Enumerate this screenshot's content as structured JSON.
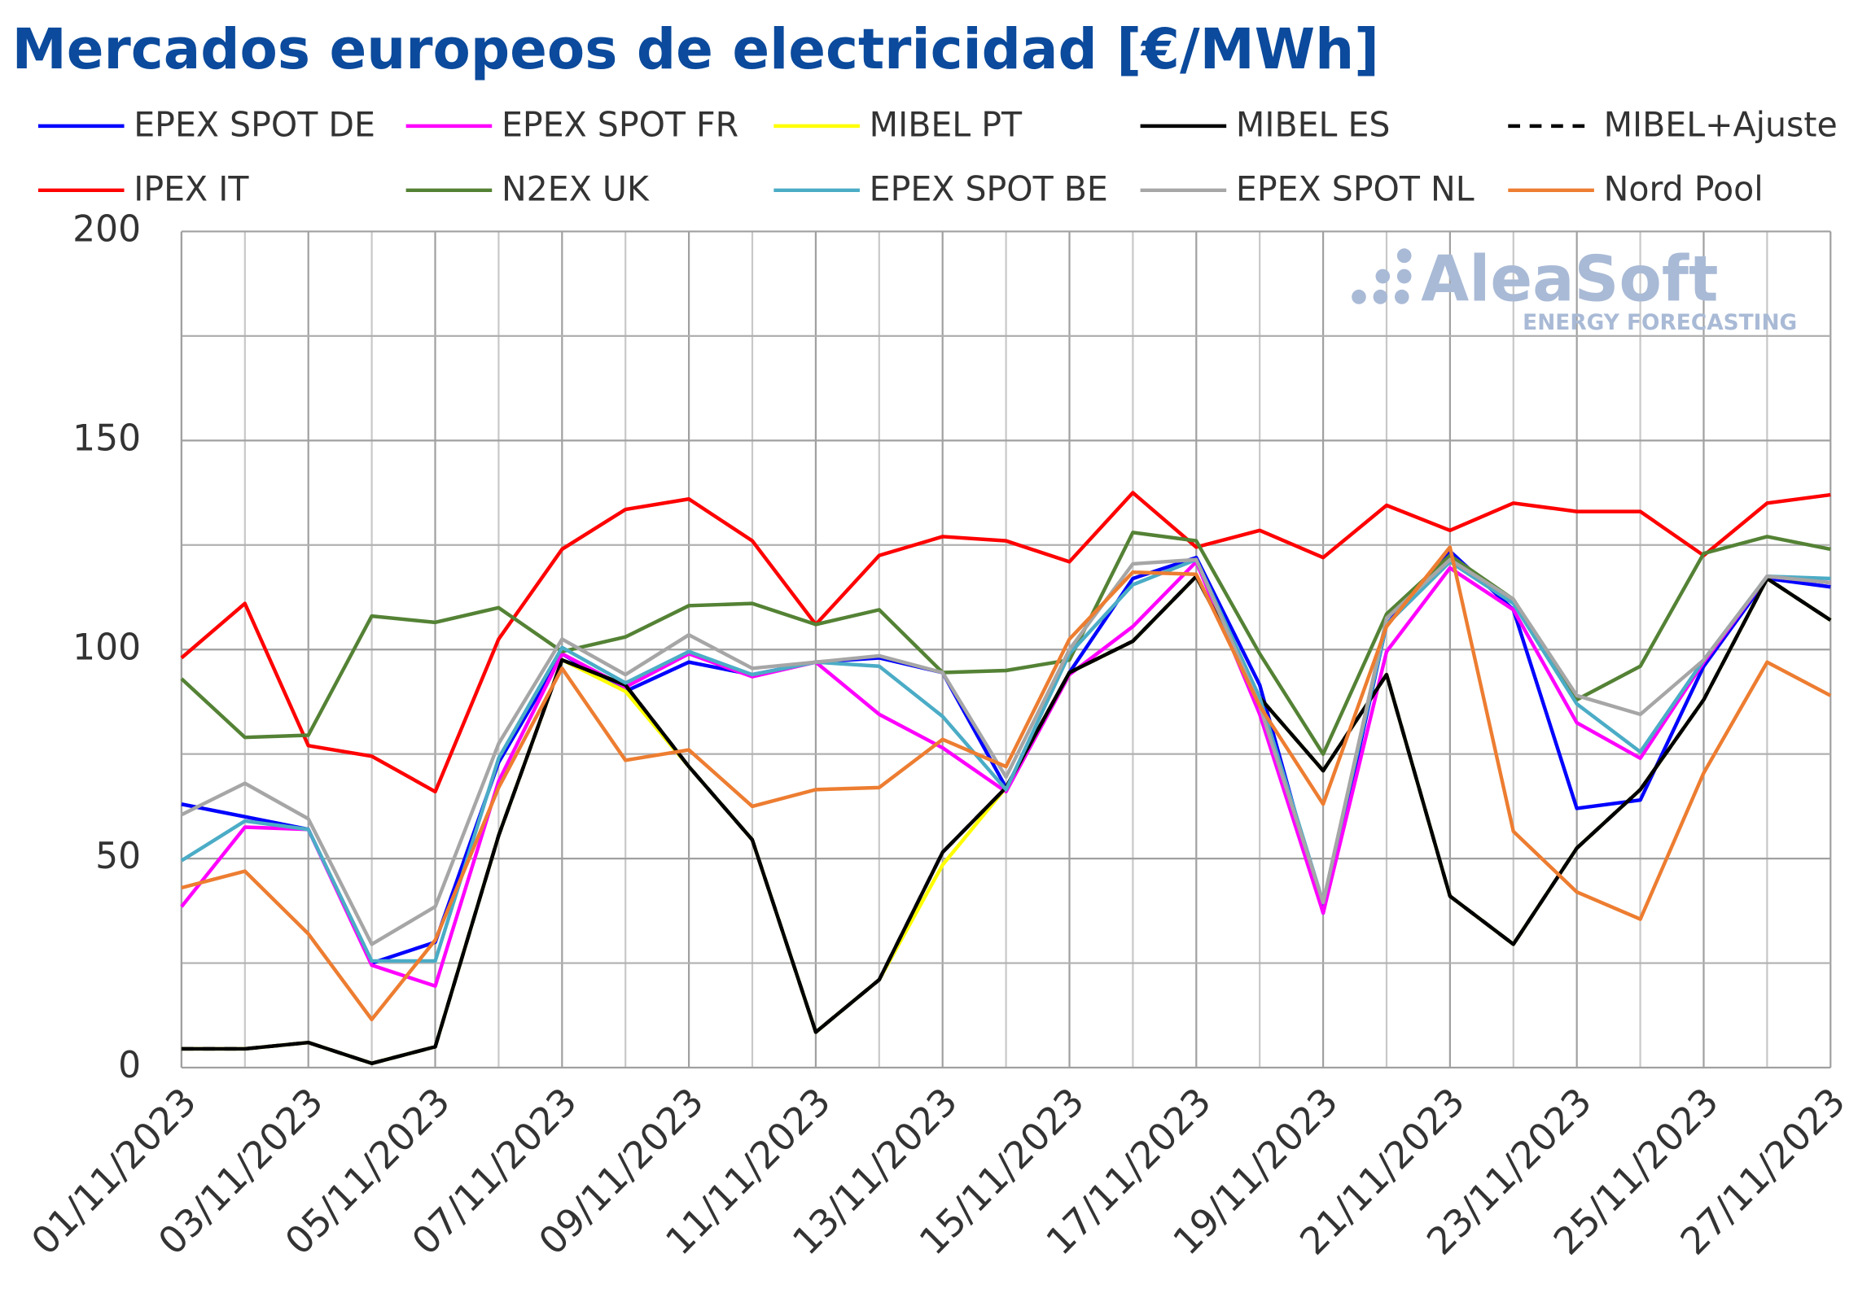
{
  "chart_data": {
    "type": "line",
    "title": "Mercados europeos de electricidad [€/MWh]",
    "watermark": {
      "brand": "AleaSoft",
      "tagline": "ENERGY FORECASTING"
    },
    "categories": [
      "01/11/2023",
      null,
      "03/11/2023",
      null,
      "05/11/2023",
      null,
      "07/11/2023",
      null,
      "09/11/2023",
      null,
      "11/11/2023",
      null,
      "13/11/2023",
      null,
      "15/11/2023",
      null,
      "17/11/2023",
      null,
      "19/11/2023",
      null,
      "21/11/2023",
      null,
      "23/11/2023",
      null,
      "25/11/2023",
      null,
      "27/11/2023"
    ],
    "ylim": [
      0,
      200
    ],
    "yticks": [
      0,
      50,
      100,
      150,
      200
    ],
    "y_minor_ticks": [
      25,
      75,
      125,
      175
    ],
    "grid": true,
    "series": [
      {
        "name": "EPEX SPOT DE",
        "color": "#0000ff",
        "values": [
          63,
          60,
          57,
          25,
          30,
          73,
          99,
          90,
          97,
          94,
          97,
          98,
          94.5,
          67,
          94.5,
          117,
          122,
          91.5,
          37,
          106,
          123.5,
          109.5,
          62,
          64,
          96,
          117,
          115
        ]
      },
      {
        "name": "EPEX SPOT FR",
        "color": "#ff00ff",
        "values": [
          38.5,
          57.5,
          57,
          24.5,
          19.5,
          68.5,
          99,
          91,
          99,
          93.5,
          97,
          84.5,
          76.5,
          66,
          94,
          105.5,
          121,
          84.5,
          37,
          99.5,
          119.5,
          109.5,
          82.5,
          74,
          97,
          117.5,
          116
        ]
      },
      {
        "name": "MIBEL PT",
        "color": "#ffff00",
        "values": [
          4.5,
          4.5,
          6,
          1,
          5,
          55.5,
          97.5,
          90,
          72,
          54.5,
          8.5,
          21,
          48.5,
          67,
          94.5,
          102,
          117.5,
          88.5,
          71,
          94,
          41,
          29.5,
          52.5,
          66.5,
          88,
          117,
          107
        ]
      },
      {
        "name": "MIBEL ES",
        "color": "#000000",
        "values": [
          4.5,
          4.5,
          6,
          1,
          5,
          55.5,
          97.5,
          91.5,
          72,
          54.5,
          8.5,
          21,
          51.5,
          67,
          94.5,
          102,
          117.5,
          88.5,
          71,
          94,
          41,
          29.5,
          52.5,
          66.5,
          88,
          117,
          107
        ]
      },
      {
        "name": "MIBEL+Ajuste",
        "color": "#000000",
        "dashed": true,
        "values": [
          4.5,
          4.5,
          6,
          1,
          5,
          55.5,
          97.5,
          91.5,
          72,
          54.5,
          8.5,
          21,
          51.5,
          67,
          94.5,
          102,
          117.5,
          88.5,
          71,
          94,
          41,
          29.5,
          52.5,
          66.5,
          88,
          117,
          107
        ]
      },
      {
        "name": "IPEX IT",
        "color": "#ff0000",
        "values": [
          98,
          111,
          77,
          74.5,
          66,
          102.5,
          124,
          133.5,
          136,
          126,
          106,
          122.5,
          127,
          126,
          121,
          137.5,
          124.5,
          128.5,
          122,
          134.5,
          128.5,
          135,
          133,
          133,
          122.5,
          135,
          137
        ]
      },
      {
        "name": "N2EX UK",
        "color": "#548235",
        "values": [
          93,
          79,
          79.5,
          108,
          106.5,
          110,
          99.5,
          103,
          110.5,
          111,
          106,
          109.5,
          94.5,
          95,
          97.5,
          128,
          126,
          99,
          75,
          108.5,
          122.5,
          112,
          88,
          96,
          123,
          127,
          124
        ]
      },
      {
        "name": "EPEX SPOT BE",
        "color": "#4bacc6",
        "values": [
          49.5,
          59,
          57,
          25.5,
          25.5,
          74,
          100.5,
          92,
          99.5,
          94,
          97,
          96,
          84,
          66.5,
          99,
          115.5,
          121.5,
          88.5,
          39.5,
          106,
          121,
          111,
          87,
          75.5,
          97.5,
          117.5,
          117
        ]
      },
      {
        "name": "EPEX SPOT NL",
        "color": "#a6a6a6",
        "values": [
          60.5,
          68,
          59.5,
          29.5,
          38.5,
          77.5,
          102.5,
          94,
          103.5,
          95.5,
          97,
          98.5,
          94.5,
          69.5,
          100,
          120.5,
          121.5,
          86.5,
          39.5,
          107.5,
          121.5,
          112,
          89,
          84.5,
          97.5,
          117.5,
          116
        ]
      },
      {
        "name": "Nord Pool",
        "color": "#ed7d31",
        "values": [
          43,
          47,
          32,
          11.5,
          30.5,
          67,
          95.5,
          73.5,
          76,
          62.5,
          66.5,
          67,
          78.5,
          72,
          102.5,
          118.5,
          118,
          86.5,
          63,
          105.5,
          124.5,
          56.5,
          42,
          35.5,
          70.5,
          97,
          89
        ]
      }
    ]
  }
}
